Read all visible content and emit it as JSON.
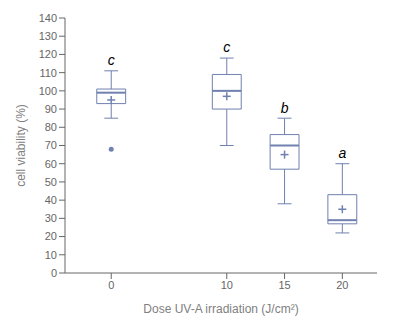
{
  "chart_data": {
    "type": "box",
    "x": [
      0,
      10,
      15,
      20
    ],
    "whislo": [
      85,
      70,
      38,
      22
    ],
    "q1": [
      93,
      90,
      57,
      27
    ],
    "med": [
      99,
      100,
      70,
      29
    ],
    "q3": [
      101,
      109,
      76,
      43
    ],
    "whishi": [
      111,
      118,
      85,
      60
    ],
    "mean": [
      95,
      97,
      65,
      35
    ],
    "fliers": [
      [
        68
      ],
      [],
      [],
      []
    ],
    "annotations": [
      {
        "x": 0,
        "y": 113,
        "text": "c"
      },
      {
        "x": 10,
        "y": 120,
        "text": "c"
      },
      {
        "x": 15,
        "y": 87,
        "text": "b"
      },
      {
        "x": 20,
        "y": 62,
        "text": "a"
      }
    ],
    "xlabel": "Dose UV-A irradiation (J/cm²)",
    "ylabel": "cell viability (%)",
    "xlim": [
      -4,
      23
    ],
    "xticks": [
      0,
      10,
      15,
      20
    ],
    "ylim": [
      0,
      140
    ],
    "yticks": [
      0,
      10,
      20,
      30,
      40,
      50,
      60,
      70,
      80,
      90,
      100,
      110,
      120,
      130,
      140
    ],
    "grid": false,
    "color": "#7080b0"
  }
}
